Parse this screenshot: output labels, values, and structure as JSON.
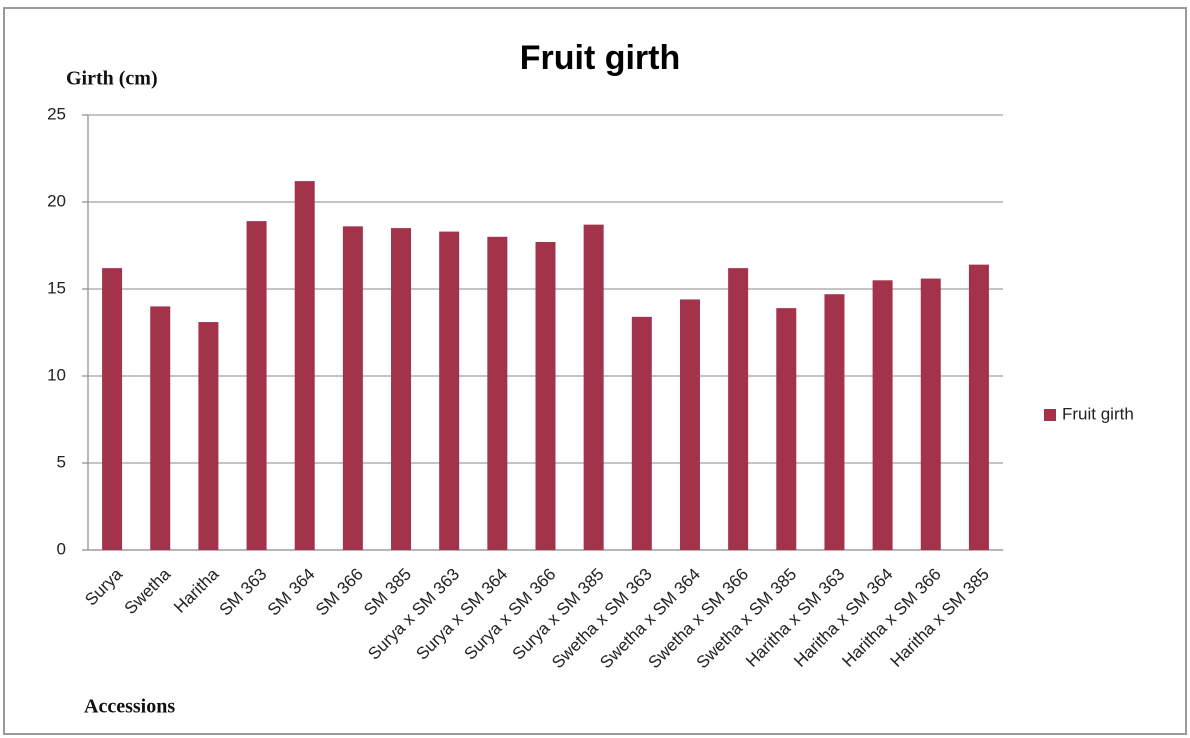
{
  "chart_data": {
    "type": "bar",
    "title": "Fruit girth",
    "y_label": "Girth (cm)",
    "x_label": "Accessions",
    "categories": [
      "Surya",
      "Swetha",
      "Haritha",
      "SM 363",
      "SM 364",
      "SM 366",
      "SM 385",
      "Surya x SM 363",
      "Surya x SM 364",
      "Surya x SM 366",
      "Surya x SM 385",
      "Swetha x SM 363",
      "Swetha x SM 364",
      "Swetha x SM 366",
      "Swetha x SM 385",
      "Haritha x SM 363",
      "Haritha x SM 364",
      "Haritha x SM 366",
      "Haritha x SM 385"
    ],
    "series": [
      {
        "name": "Fruit girth",
        "color": "#a3334a",
        "values": [
          16.2,
          14.0,
          13.1,
          18.9,
          21.2,
          18.6,
          18.5,
          18.3,
          18.0,
          17.7,
          18.7,
          13.4,
          14.4,
          16.2,
          13.9,
          14.7,
          15.5,
          15.6,
          16.4
        ]
      }
    ],
    "ylim": [
      0,
      25
    ],
    "yticks": [
      0,
      5,
      10,
      15,
      20,
      25
    ],
    "grid": true,
    "legend": "right"
  }
}
